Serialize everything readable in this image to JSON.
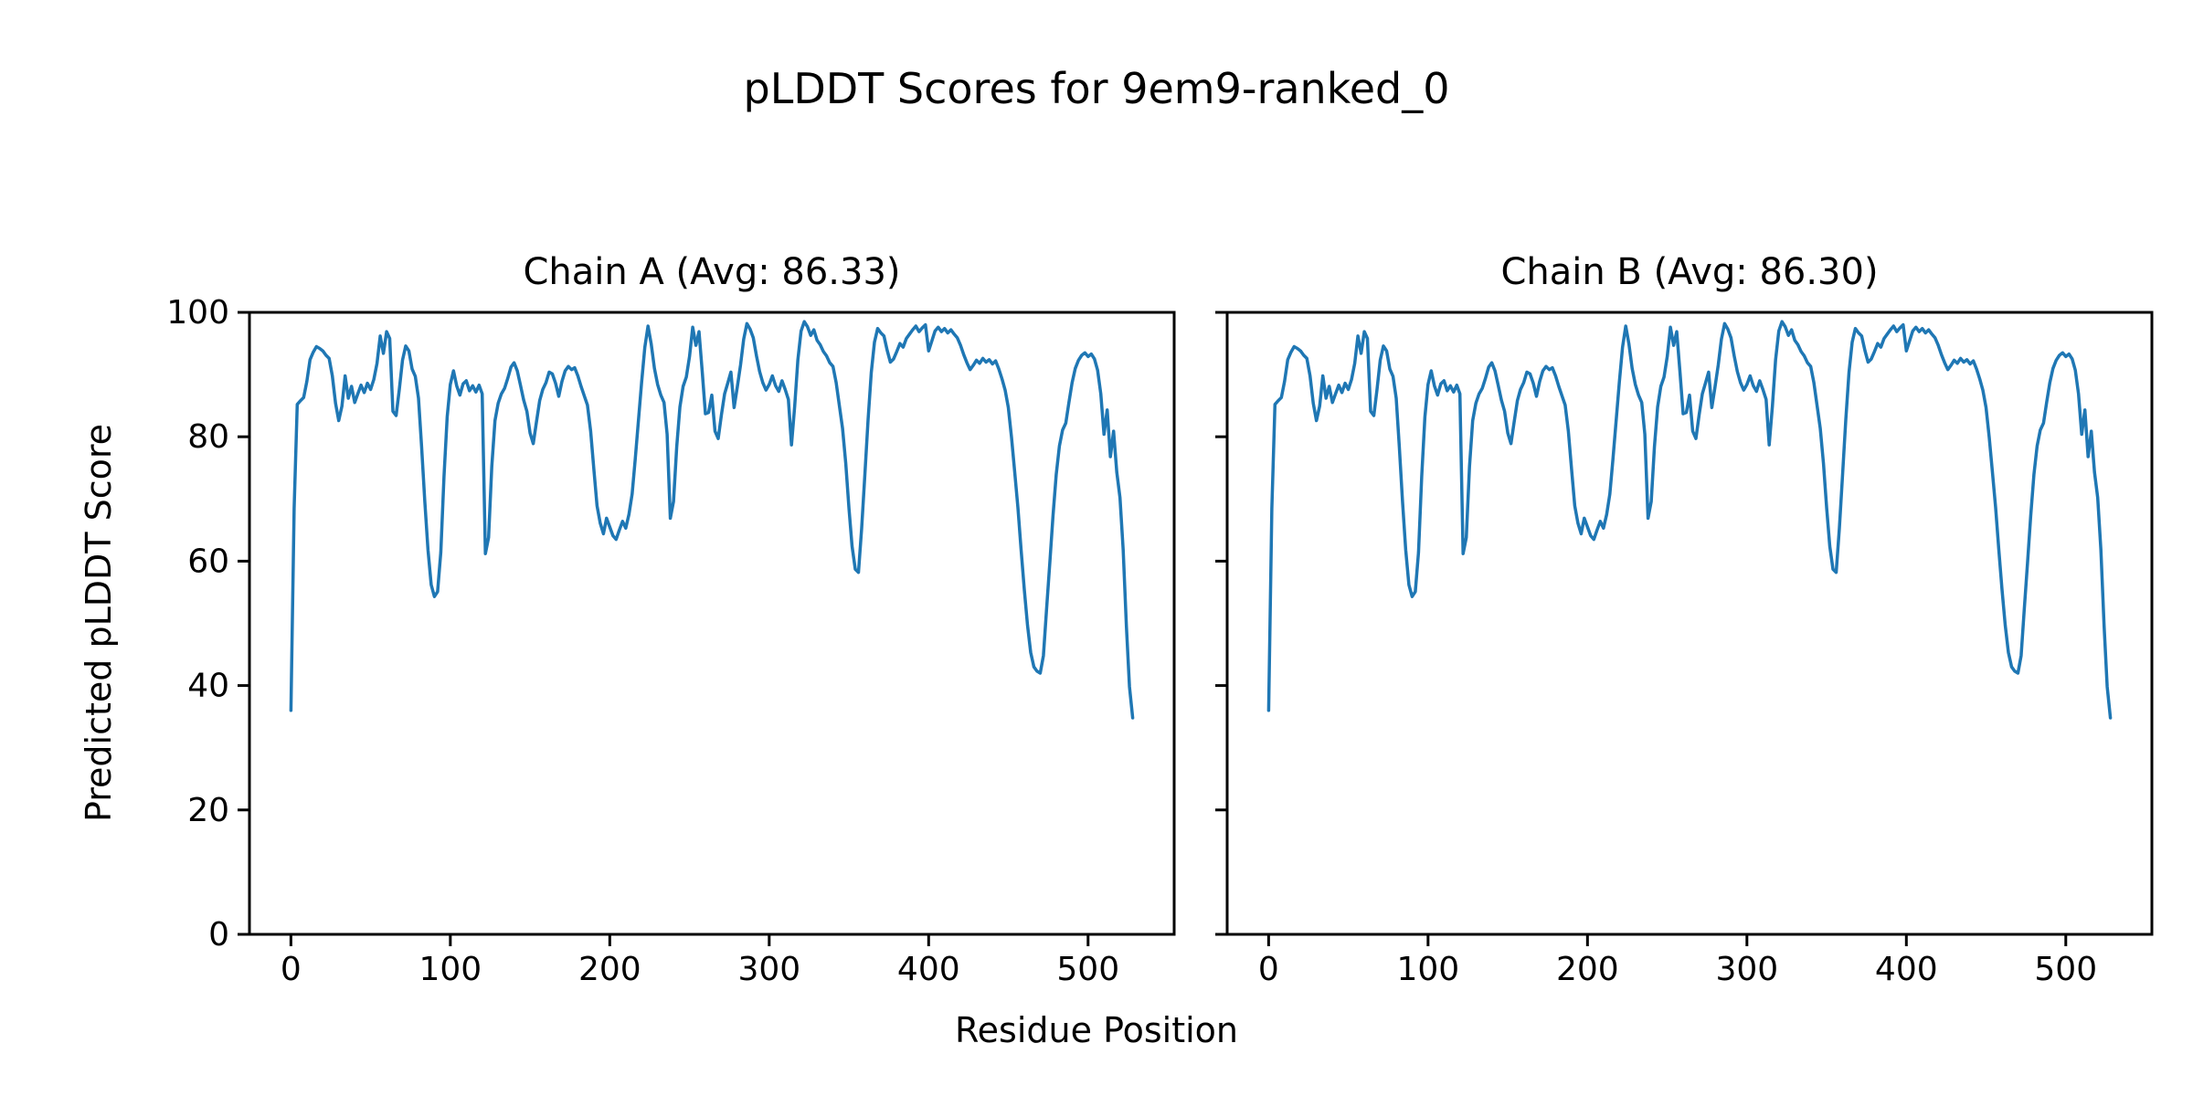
{
  "figure": {
    "suptitle": "pLDDT Scores for 9em9-ranked_0",
    "xlabel": "Residue Position",
    "ylabel": "Predicted pLDDT Score",
    "background_color": "#ffffff",
    "text_color": "#000000"
  },
  "chart_data": {
    "type": "line",
    "line_color": "#1f77b4",
    "line_width": 3.5,
    "grid": false,
    "legend": "none",
    "panels": [
      {
        "id": "chain-a",
        "title": "Chain A (Avg: 86.33)",
        "chain": "A",
        "avg": 86.33
      },
      {
        "id": "chain-b",
        "title": "Chain B (Avg: 86.30)",
        "chain": "B",
        "avg": 86.3
      }
    ],
    "note": "Both panels show visually identical per-residue pLDDT profiles",
    "xlabel": "Residue Position",
    "ylabel": "Predicted pLDDT Score",
    "xlim": [
      -26,
      554
    ],
    "ylim": [
      0,
      100
    ],
    "x_ticks": [
      0,
      100,
      200,
      300,
      400,
      500
    ],
    "y_ticks": [
      0,
      20,
      40,
      60,
      80,
      100
    ],
    "x_start": 0,
    "x_step": 2,
    "values": [
      36.0,
      68.5,
      85.2,
      85.8,
      86.3,
      88.9,
      92.4,
      93.6,
      94.5,
      94.2,
      93.8,
      93.1,
      92.6,
      89.8,
      85.4,
      82.6,
      84.9,
      89.8,
      86.2,
      88.1,
      85.5,
      86.9,
      88.3,
      87.1,
      88.6,
      87.6,
      89.2,
      91.8,
      96.2,
      93.4,
      96.9,
      95.8,
      84.1,
      83.4,
      87.6,
      92.3,
      94.6,
      93.8,
      90.9,
      89.7,
      86.2,
      78.4,
      69.6,
      61.8,
      56.2,
      54.3,
      55.1,
      61.4,
      73.6,
      83.2,
      88.4,
      90.6,
      88.2,
      86.7,
      88.5,
      89.0,
      87.4,
      88.2,
      87.2,
      88.3,
      86.9,
      61.2,
      63.8,
      75.2,
      82.6,
      85.4,
      86.9,
      87.8,
      89.4,
      91.2,
      91.9,
      90.6,
      88.3,
      85.9,
      84.1,
      80.6,
      78.9,
      82.4,
      85.8,
      87.6,
      88.7,
      90.4,
      90.1,
      88.6,
      86.5,
      88.9,
      90.6,
      91.3,
      90.8,
      91.1,
      89.8,
      88.1,
      86.6,
      85.1,
      80.9,
      74.8,
      68.9,
      66.1,
      64.4,
      66.9,
      65.5,
      64.1,
      63.5,
      65.0,
      66.4,
      65.3,
      67.5,
      70.8,
      76.4,
      82.6,
      88.8,
      94.4,
      97.8,
      94.9,
      91.0,
      88.4,
      86.7,
      85.5,
      80.4,
      66.9,
      69.6,
      78.4,
      84.8,
      88.1,
      89.6,
      92.9,
      97.6,
      94.7,
      96.9,
      90.5,
      83.7,
      83.9,
      86.7,
      80.9,
      79.7,
      83.5,
      86.9,
      88.6,
      90.4,
      84.7,
      88.0,
      91.5,
      95.7,
      98.2,
      97.3,
      95.9,
      93.0,
      90.5,
      88.7,
      87.5,
      88.4,
      89.8,
      88.2,
      87.3,
      89.0,
      87.6,
      86.0,
      78.7,
      84.9,
      92.4,
      97.0,
      98.5,
      97.7,
      96.3,
      97.2,
      95.5,
      94.8,
      93.7,
      93.0,
      91.9,
      91.3,
      88.7,
      85.0,
      81.3,
      75.7,
      68.5,
      62.4,
      58.7,
      58.2,
      65.3,
      73.9,
      82.7,
      90.3,
      95.2,
      97.4,
      96.7,
      96.2,
      93.9,
      92.0,
      92.5,
      93.7,
      95.0,
      94.4,
      95.8,
      96.5,
      97.2,
      97.8,
      96.9,
      97.5,
      98.0,
      93.8,
      95.4,
      97.0,
      97.6,
      96.9,
      97.4,
      96.7,
      97.2,
      96.5,
      95.9,
      94.7,
      93.2,
      91.9,
      90.8,
      91.5,
      92.3,
      91.8,
      92.6,
      92.0,
      92.4,
      91.7,
      92.2,
      90.9,
      89.3,
      87.5,
      84.7,
      79.9,
      74.3,
      68.6,
      61.8,
      55.4,
      49.7,
      45.3,
      43.0,
      42.3,
      42.0,
      44.8,
      52.4,
      59.7,
      67.3,
      73.9,
      78.5,
      81.1,
      82.2,
      85.5,
      88.7,
      91.0,
      92.3,
      93.1,
      93.5,
      92.9,
      93.3,
      92.5,
      90.7,
      86.9,
      80.4,
      84.3,
      76.8,
      80.9,
      74.3,
      70.2,
      61.8,
      49.6,
      39.8,
      34.8
    ]
  },
  "style": {
    "axes_edge_color": "#000000",
    "tick_color": "#000000"
  }
}
